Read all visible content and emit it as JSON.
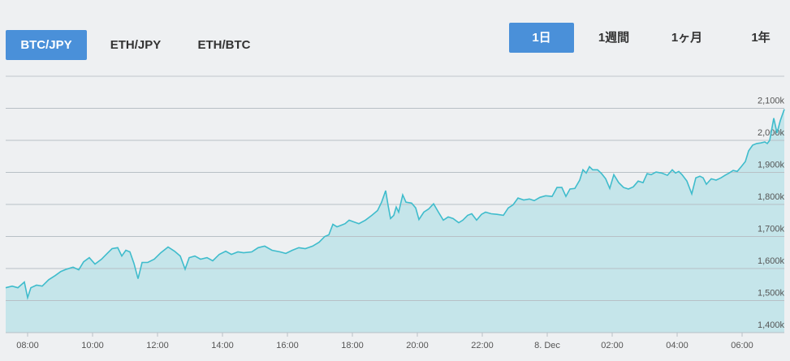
{
  "pair_tabs": [
    {
      "label": "BTC/JPY",
      "selected": true
    },
    {
      "label": "ETH/JPY",
      "selected": false
    },
    {
      "label": "ETH/BTC",
      "selected": false
    }
  ],
  "range_tabs": [
    {
      "label": "1日",
      "selected": true
    },
    {
      "label": "1週間",
      "selected": false
    },
    {
      "label": "1ヶ月",
      "selected": false
    },
    {
      "label": "1年",
      "selected": false
    }
  ],
  "chart_data": {
    "type": "area",
    "color": "#3fbccc",
    "fill_color": "#c5e5ea",
    "grid": true,
    "xlim": [
      7.325,
      31.3
    ],
    "ylim": [
      1400000,
      2200000
    ],
    "xticks": [
      {
        "value": 8,
        "label": "08:00"
      },
      {
        "value": 10,
        "label": "10:00"
      },
      {
        "value": 12,
        "label": "12:00"
      },
      {
        "value": 14,
        "label": "14:00"
      },
      {
        "value": 16,
        "label": "16:00"
      },
      {
        "value": 18,
        "label": "18:00"
      },
      {
        "value": 20,
        "label": "20:00"
      },
      {
        "value": 22,
        "label": "22:00"
      },
      {
        "value": 24,
        "label": "8. Dec"
      },
      {
        "value": 26,
        "label": "02:00"
      },
      {
        "value": 28,
        "label": "04:00"
      },
      {
        "value": 30,
        "label": "06:00"
      }
    ],
    "yticks": [
      {
        "value": 1400000,
        "label": "1,400k"
      },
      {
        "value": 1500000,
        "label": "1,500k"
      },
      {
        "value": 1600000,
        "label": "1,600k"
      },
      {
        "value": 1700000,
        "label": "1,700k"
      },
      {
        "value": 1800000,
        "label": "1,800k"
      },
      {
        "value": 1900000,
        "label": "1,900k"
      },
      {
        "value": 2000000,
        "label": "2,000k"
      },
      {
        "value": 2100000,
        "label": "2,100k"
      }
    ],
    "x": [
      7.325,
      7.525,
      7.7,
      7.9,
      8.0,
      8.1,
      8.275,
      8.45,
      8.65,
      8.85,
      9.025,
      9.2,
      9.4,
      9.575,
      9.725,
      9.9,
      10.075,
      10.275,
      10.45,
      10.6,
      10.775,
      10.9,
      11.025,
      11.15,
      11.275,
      11.4,
      11.525,
      11.7,
      11.9,
      12.1,
      12.325,
      12.525,
      12.7,
      12.85,
      12.975,
      13.15,
      13.325,
      13.525,
      13.7,
      13.9,
      14.1,
      14.275,
      14.475,
      14.65,
      14.9,
      15.1,
      15.3,
      15.525,
      15.775,
      15.95,
      16.15,
      16.35,
      16.55,
      16.775,
      16.975,
      17.15,
      17.275,
      17.4,
      17.525,
      17.65,
      17.775,
      17.9,
      18.025,
      18.2,
      18.4,
      18.6,
      18.775,
      18.9,
      19.025,
      19.1,
      19.175,
      19.275,
      19.35,
      19.425,
      19.55,
      19.65,
      19.825,
      19.95,
      20.05,
      20.2,
      20.35,
      20.5,
      20.65,
      20.8,
      20.95,
      21.1,
      21.275,
      21.4,
      21.55,
      21.675,
      21.825,
      21.975,
      22.1,
      22.275,
      22.45,
      22.65,
      22.8,
      22.95,
      23.1,
      23.275,
      23.45,
      23.6,
      23.775,
      23.95,
      24.15,
      24.3,
      24.45,
      24.575,
      24.7,
      24.85,
      25.0,
      25.1,
      25.2,
      25.3,
      25.4,
      25.55,
      25.675,
      25.8,
      25.925,
      26.05,
      26.2,
      26.35,
      26.5,
      26.65,
      26.8,
      26.95,
      27.075,
      27.2,
      27.35,
      27.525,
      27.7,
      27.85,
      27.95,
      28.05,
      28.15,
      28.3,
      28.45,
      28.575,
      28.7,
      28.8,
      28.9,
      29.05,
      29.2,
      29.35,
      29.475,
      29.6,
      29.725,
      29.85,
      29.975,
      30.1,
      30.2,
      30.325,
      30.45,
      30.575,
      30.7,
      30.775,
      30.85,
      30.975,
      31.075,
      31.175,
      31.3
    ],
    "values": [
      1540000,
      1545000,
      1540000,
      1558000,
      1509000,
      1540000,
      1548000,
      1545000,
      1565000,
      1578000,
      1591000,
      1598000,
      1604000,
      1596000,
      1621000,
      1634000,
      1614000,
      1629000,
      1647000,
      1662000,
      1665000,
      1639000,
      1657000,
      1652000,
      1616000,
      1568000,
      1619000,
      1619000,
      1629000,
      1649000,
      1667000,
      1654000,
      1639000,
      1598000,
      1634000,
      1639000,
      1629000,
      1634000,
      1624000,
      1644000,
      1654000,
      1644000,
      1652000,
      1649000,
      1652000,
      1665000,
      1670000,
      1657000,
      1652000,
      1647000,
      1657000,
      1665000,
      1662000,
      1670000,
      1682000,
      1700000,
      1705000,
      1738000,
      1730000,
      1735000,
      1740000,
      1751000,
      1746000,
      1740000,
      1751000,
      1766000,
      1781000,
      1807000,
      1843000,
      1797000,
      1756000,
      1766000,
      1792000,
      1776000,
      1830000,
      1807000,
      1804000,
      1789000,
      1753000,
      1776000,
      1786000,
      1802000,
      1776000,
      1751000,
      1761000,
      1756000,
      1743000,
      1751000,
      1766000,
      1771000,
      1751000,
      1769000,
      1776000,
      1771000,
      1769000,
      1766000,
      1789000,
      1799000,
      1820000,
      1814000,
      1817000,
      1812000,
      1822000,
      1827000,
      1825000,
      1853000,
      1853000,
      1825000,
      1848000,
      1850000,
      1876000,
      1908000,
      1898000,
      1918000,
      1908000,
      1908000,
      1896000,
      1880000,
      1850000,
      1893000,
      1868000,
      1853000,
      1848000,
      1855000,
      1873000,
      1868000,
      1896000,
      1893000,
      1901000,
      1898000,
      1891000,
      1908000,
      1898000,
      1903000,
      1893000,
      1873000,
      1833000,
      1883000,
      1888000,
      1883000,
      1863000,
      1880000,
      1876000,
      1883000,
      1891000,
      1898000,
      1906000,
      1903000,
      1918000,
      1934000,
      1967000,
      1985000,
      1990000,
      1992000,
      1995000,
      1990000,
      2000000,
      2069000,
      2023000,
      2061000,
      2097000
    ]
  }
}
